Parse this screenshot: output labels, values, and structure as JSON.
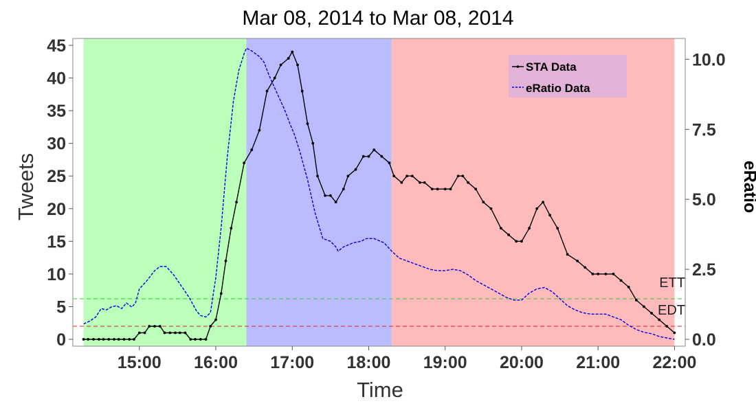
{
  "chart_data": {
    "type": "line",
    "title": "Mar 08, 2014  to  Mar 08, 2014",
    "xlabel": "Time",
    "ylabel_left": "Tweets",
    "ylabel_right": "eRatio",
    "x_range": [
      14.27,
      22.0
    ],
    "x_ticks": [
      "15:00",
      "16:00",
      "17:00",
      "18:00",
      "19:00",
      "20:00",
      "21:00",
      "22:00"
    ],
    "ylim_left": [
      0,
      45
    ],
    "y_ticks_left": [
      "0",
      "5",
      "10",
      "15",
      "20",
      "25",
      "30",
      "35",
      "40",
      "45"
    ],
    "ylim_right": [
      0,
      10.5
    ],
    "y_ticks_right": [
      "0.0",
      "2.5",
      "5.0",
      "7.5",
      "10.0"
    ],
    "bands": [
      {
        "from": 14.27,
        "to": 16.4,
        "color": "#bbffbb"
      },
      {
        "from": 16.4,
        "to": 18.3,
        "color": "#bbbbff"
      },
      {
        "from": 18.3,
        "to": 22.0,
        "color": "#ffbbbb"
      }
    ],
    "thresholds": [
      {
        "name": "ETT",
        "value": 6.2,
        "color": "#33cc33"
      },
      {
        "name": "EDT",
        "value": 2.0,
        "color": "#dd2222"
      }
    ],
    "legend": {
      "position": "top-right"
    },
    "series": [
      {
        "name": "STA Data",
        "axis": "left",
        "color": "#000000",
        "style": "solid-markers",
        "points": [
          [
            14.27,
            0
          ],
          [
            14.33,
            0
          ],
          [
            14.4,
            0
          ],
          [
            14.47,
            0
          ],
          [
            14.53,
            0
          ],
          [
            14.6,
            0
          ],
          [
            14.67,
            0
          ],
          [
            14.73,
            0
          ],
          [
            14.8,
            0
          ],
          [
            14.87,
            0
          ],
          [
            14.93,
            0
          ],
          [
            15.0,
            1
          ],
          [
            15.07,
            1
          ],
          [
            15.13,
            2
          ],
          [
            15.2,
            2
          ],
          [
            15.27,
            2
          ],
          [
            15.33,
            1
          ],
          [
            15.4,
            1
          ],
          [
            15.47,
            1
          ],
          [
            15.53,
            1
          ],
          [
            15.6,
            1
          ],
          [
            15.67,
            0
          ],
          [
            15.73,
            0
          ],
          [
            15.8,
            0
          ],
          [
            15.87,
            0
          ],
          [
            15.93,
            2
          ],
          [
            16.0,
            3
          ],
          [
            16.07,
            7
          ],
          [
            16.13,
            12
          ],
          [
            16.2,
            17
          ],
          [
            16.27,
            21
          ],
          [
            16.37,
            27
          ],
          [
            16.47,
            29
          ],
          [
            16.57,
            32
          ],
          [
            16.67,
            38
          ],
          [
            16.77,
            40
          ],
          [
            16.85,
            42
          ],
          [
            16.95,
            43
          ],
          [
            17.0,
            44
          ],
          [
            17.07,
            42
          ],
          [
            17.13,
            38
          ],
          [
            17.2,
            33
          ],
          [
            17.27,
            30
          ],
          [
            17.33,
            25
          ],
          [
            17.43,
            22
          ],
          [
            17.5,
            22
          ],
          [
            17.57,
            21
          ],
          [
            17.67,
            23
          ],
          [
            17.73,
            25
          ],
          [
            17.83,
            26
          ],
          [
            17.93,
            28
          ],
          [
            18.0,
            28
          ],
          [
            18.07,
            29
          ],
          [
            18.17,
            28
          ],
          [
            18.27,
            27
          ],
          [
            18.33,
            25
          ],
          [
            18.43,
            24
          ],
          [
            18.5,
            25
          ],
          [
            18.57,
            25
          ],
          [
            18.67,
            24
          ],
          [
            18.73,
            24
          ],
          [
            18.83,
            23
          ],
          [
            18.9,
            23
          ],
          [
            19.0,
            23
          ],
          [
            19.07,
            23
          ],
          [
            19.17,
            25
          ],
          [
            19.23,
            25
          ],
          [
            19.3,
            24
          ],
          [
            19.4,
            23
          ],
          [
            19.5,
            21
          ],
          [
            19.6,
            20
          ],
          [
            19.73,
            17
          ],
          [
            19.83,
            16
          ],
          [
            19.93,
            15
          ],
          [
            20.0,
            15
          ],
          [
            20.1,
            17
          ],
          [
            20.2,
            20
          ],
          [
            20.28,
            21
          ],
          [
            20.37,
            19
          ],
          [
            20.47,
            17
          ],
          [
            20.6,
            13
          ],
          [
            20.73,
            12
          ],
          [
            20.83,
            11
          ],
          [
            20.93,
            10
          ],
          [
            21.0,
            10
          ],
          [
            21.1,
            10
          ],
          [
            21.2,
            10
          ],
          [
            21.3,
            9
          ],
          [
            21.4,
            8
          ],
          [
            21.5,
            6
          ],
          [
            21.6,
            5
          ],
          [
            21.7,
            4
          ],
          [
            21.8,
            3
          ],
          [
            21.9,
            2
          ],
          [
            22.0,
            1
          ]
        ]
      },
      {
        "name": "eRatio Data",
        "axis": "right",
        "color": "#0000dd",
        "style": "dashed",
        "points": [
          [
            14.27,
            0.55
          ],
          [
            14.35,
            0.65
          ],
          [
            14.43,
            0.8
          ],
          [
            14.5,
            1.1
          ],
          [
            14.57,
            1.05
          ],
          [
            14.63,
            1.15
          ],
          [
            14.7,
            1.2
          ],
          [
            14.77,
            1.1
          ],
          [
            14.83,
            1.3
          ],
          [
            14.9,
            1.15
          ],
          [
            14.95,
            1.3
          ],
          [
            15.0,
            1.8
          ],
          [
            15.1,
            2.1
          ],
          [
            15.2,
            2.45
          ],
          [
            15.27,
            2.6
          ],
          [
            15.35,
            2.6
          ],
          [
            15.45,
            2.3
          ],
          [
            15.55,
            1.9
          ],
          [
            15.65,
            1.5
          ],
          [
            15.75,
            1.0
          ],
          [
            15.8,
            0.85
          ],
          [
            15.87,
            0.8
          ],
          [
            15.93,
            0.95
          ],
          [
            16.0,
            2.2
          ],
          [
            16.07,
            4.0
          ],
          [
            16.15,
            6.5
          ],
          [
            16.23,
            8.5
          ],
          [
            16.3,
            9.6
          ],
          [
            16.37,
            10.2
          ],
          [
            16.4,
            10.4
          ],
          [
            16.47,
            10.3
          ],
          [
            16.57,
            10.1
          ],
          [
            16.63,
            9.9
          ],
          [
            16.7,
            9.4
          ],
          [
            16.8,
            8.8
          ],
          [
            16.9,
            8.2
          ],
          [
            16.97,
            7.7
          ],
          [
            17.03,
            7.3
          ],
          [
            17.1,
            6.7
          ],
          [
            17.2,
            5.7
          ],
          [
            17.3,
            4.5
          ],
          [
            17.4,
            3.6
          ],
          [
            17.5,
            3.5
          ],
          [
            17.57,
            3.3
          ],
          [
            17.6,
            3.15
          ],
          [
            17.67,
            3.3
          ],
          [
            17.8,
            3.45
          ],
          [
            17.9,
            3.5
          ],
          [
            17.97,
            3.6
          ],
          [
            18.07,
            3.6
          ],
          [
            18.2,
            3.45
          ],
          [
            18.3,
            3.15
          ],
          [
            18.4,
            2.9
          ],
          [
            18.5,
            2.8
          ],
          [
            18.6,
            2.7
          ],
          [
            18.7,
            2.6
          ],
          [
            18.8,
            2.5
          ],
          [
            18.9,
            2.45
          ],
          [
            19.0,
            2.45
          ],
          [
            19.1,
            2.5
          ],
          [
            19.2,
            2.45
          ],
          [
            19.3,
            2.3
          ],
          [
            19.4,
            2.1
          ],
          [
            19.5,
            1.95
          ],
          [
            19.6,
            1.8
          ],
          [
            19.7,
            1.65
          ],
          [
            19.8,
            1.5
          ],
          [
            19.9,
            1.4
          ],
          [
            20.0,
            1.4
          ],
          [
            20.1,
            1.65
          ],
          [
            20.2,
            1.8
          ],
          [
            20.3,
            1.85
          ],
          [
            20.4,
            1.7
          ],
          [
            20.5,
            1.45
          ],
          [
            20.6,
            1.2
          ],
          [
            20.7,
            1.05
          ],
          [
            20.8,
            0.95
          ],
          [
            20.9,
            0.9
          ],
          [
            21.0,
            0.9
          ],
          [
            21.1,
            0.9
          ],
          [
            21.2,
            0.8
          ],
          [
            21.3,
            0.7
          ],
          [
            21.4,
            0.5
          ],
          [
            21.5,
            0.35
          ],
          [
            21.6,
            0.25
          ],
          [
            21.7,
            0.2
          ],
          [
            21.8,
            0.1
          ],
          [
            21.9,
            0.05
          ],
          [
            22.0,
            0.0
          ]
        ]
      }
    ]
  }
}
